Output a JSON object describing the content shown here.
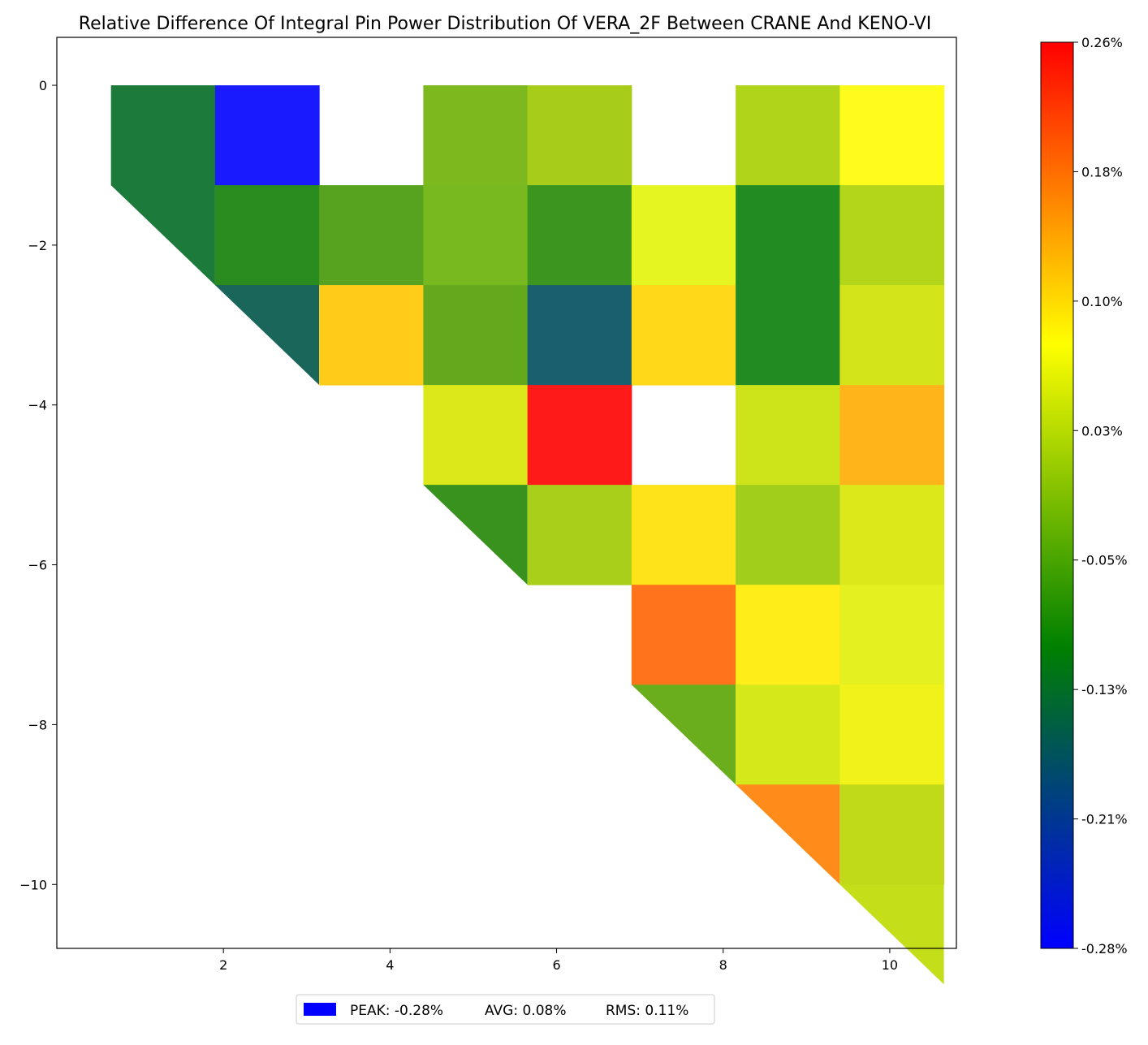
{
  "chart_data": {
    "type": "heatmap",
    "title": "Relative Difference Of Integral Pin Power Distribution Of VERA_2F Between CRANE And KENO-VI",
    "xlabel": "",
    "ylabel": "",
    "xlim": [
      0.0,
      10.8
    ],
    "ylim": [
      -10.8,
      0.6
    ],
    "x_ticks": [
      2,
      4,
      6,
      8,
      10
    ],
    "y_ticks": [
      0,
      -2,
      -4,
      -6,
      -8,
      -10
    ],
    "grid": false,
    "cell_size": 1.25,
    "colorbar": {
      "min": -0.28,
      "max": 0.26,
      "colors": [
        "#0000ff",
        "#008000",
        "#ffff00",
        "#ff0000"
      ],
      "tick_labels": [
        "0.26%",
        "0.18%",
        "0.10%",
        "0.03%",
        "-0.05%",
        "-0.13%",
        "-0.21%",
        "-0.28%"
      ]
    },
    "cells": [
      {
        "row": 0,
        "col": 0,
        "value": -0.14,
        "color": "#1c7a3a"
      },
      {
        "row": 0,
        "col": 1,
        "value": -0.28,
        "color": "#1a1aff"
      },
      {
        "row": 0,
        "col": 3,
        "value": -0.04,
        "color": "#7cb81e"
      },
      {
        "row": 0,
        "col": 4,
        "value": -0.01,
        "color": "#a8cc1a"
      },
      {
        "row": 0,
        "col": 6,
        "value": 0.0,
        "color": "#b0d41a"
      },
      {
        "row": 0,
        "col": 7,
        "value": 0.075,
        "color": "#fffb1a"
      },
      {
        "row": 1,
        "col": 0,
        "value": -0.14,
        "color": "#1c7a3a",
        "diagonal": true
      },
      {
        "row": 1,
        "col": 1,
        "value": -0.1,
        "color": "#2a8c1f"
      },
      {
        "row": 1,
        "col": 2,
        "value": -0.07,
        "color": "#57a21e"
      },
      {
        "row": 1,
        "col": 3,
        "value": -0.04,
        "color": "#78b91f"
      },
      {
        "row": 1,
        "col": 4,
        "value": -0.1,
        "color": "#3c951e"
      },
      {
        "row": 1,
        "col": 5,
        "value": 0.05,
        "color": "#e4f51f"
      },
      {
        "row": 1,
        "col": 6,
        "value": -0.12,
        "color": "#228b22"
      },
      {
        "row": 1,
        "col": 7,
        "value": 0.0,
        "color": "#b4d61a"
      },
      {
        "row": 2,
        "col": 1,
        "value": -0.19,
        "color": "#1a665a",
        "diagonal": true
      },
      {
        "row": 2,
        "col": 2,
        "value": 0.11,
        "color": "#ffcc1a"
      },
      {
        "row": 2,
        "col": 3,
        "value": -0.06,
        "color": "#64a81e"
      },
      {
        "row": 2,
        "col": 4,
        "value": -0.2,
        "color": "#1a5f6e"
      },
      {
        "row": 2,
        "col": 5,
        "value": 0.1,
        "color": "#ffd81a"
      },
      {
        "row": 2,
        "col": 6,
        "value": -0.12,
        "color": "#228b22"
      },
      {
        "row": 2,
        "col": 7,
        "value": 0.02,
        "color": "#d4e41a"
      },
      {
        "row": 3,
        "col": 3,
        "value": 0.04,
        "color": "#dce81a"
      },
      {
        "row": 3,
        "col": 4,
        "value": 0.26,
        "color": "#ff1a1a"
      },
      {
        "row": 3,
        "col": 6,
        "value": 0.02,
        "color": "#cde31a"
      },
      {
        "row": 3,
        "col": 7,
        "value": 0.14,
        "color": "#ffb41a"
      },
      {
        "row": 4,
        "col": 3,
        "value": -0.09,
        "color": "#3a921e",
        "diagonal": true
      },
      {
        "row": 4,
        "col": 4,
        "value": -0.01,
        "color": "#a8d01a"
      },
      {
        "row": 4,
        "col": 5,
        "value": 0.09,
        "color": "#ffe31a"
      },
      {
        "row": 4,
        "col": 6,
        "value": -0.02,
        "color": "#a0ce1a"
      },
      {
        "row": 4,
        "col": 7,
        "value": 0.04,
        "color": "#dce81a"
      },
      {
        "row": 5,
        "col": 5,
        "value": 0.19,
        "color": "#ff741a"
      },
      {
        "row": 5,
        "col": 6,
        "value": 0.08,
        "color": "#ffed1a"
      },
      {
        "row": 5,
        "col": 7,
        "value": 0.05,
        "color": "#e4f01f"
      },
      {
        "row": 6,
        "col": 5,
        "value": -0.05,
        "color": "#6aae1e",
        "diagonal": true
      },
      {
        "row": 6,
        "col": 6,
        "value": 0.03,
        "color": "#d4e81a"
      },
      {
        "row": 6,
        "col": 7,
        "value": 0.06,
        "color": "#f0f21a"
      },
      {
        "row": 7,
        "col": 6,
        "value": 0.17,
        "color": "#ff8c1a",
        "diagonal": true
      },
      {
        "row": 7,
        "col": 7,
        "value": 0.01,
        "color": "#c0da1a"
      },
      {
        "row": 8,
        "col": 7,
        "value": 0.01,
        "color": "#c4de1a",
        "diagonal": true
      }
    ],
    "legend": {
      "position": "bottom-center",
      "swatch_color": "#0000ff",
      "peak": "PEAK: -0.28%",
      "avg": "AVG: 0.08%",
      "rms": "RMS: 0.11%"
    }
  }
}
